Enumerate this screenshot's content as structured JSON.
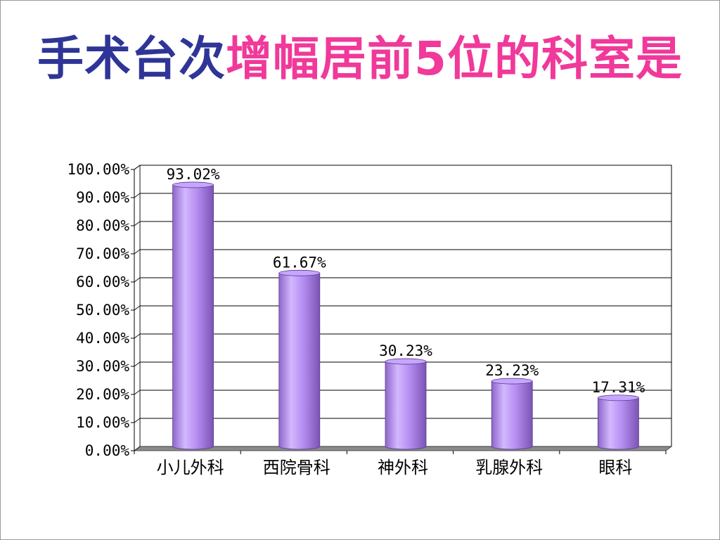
{
  "title": {
    "part1": "手术台次",
    "part2": "增幅居前5位的科室是",
    "color1": "#2f3597",
    "color2": "#f0399a"
  },
  "chart_data": {
    "type": "bar",
    "title": "",
    "xlabel": "",
    "ylabel": "",
    "categories": [
      "小儿外科",
      "西院骨科",
      "神外科",
      "乳腺外科",
      "眼科"
    ],
    "values": [
      93.02,
      61.67,
      30.23,
      23.23,
      17.31
    ],
    "data_labels": [
      "93.02%",
      "61.67%",
      "30.23%",
      "23.23%",
      "17.31%"
    ],
    "ylim": [
      0,
      100
    ],
    "yticks": [
      0,
      10,
      20,
      30,
      40,
      50,
      60,
      70,
      80,
      90,
      100
    ],
    "ytick_labels": [
      "0.00%",
      "10.00%",
      "20.00%",
      "30.00%",
      "40.00%",
      "50.00%",
      "60.00%",
      "70.00%",
      "80.00%",
      "90.00%",
      "100.00%"
    ],
    "grid": true,
    "bar_style": "3d-cylinder",
    "bar_color": "#b58cf0",
    "bar_edge_color": "#5a3a8a",
    "legend": "none"
  }
}
